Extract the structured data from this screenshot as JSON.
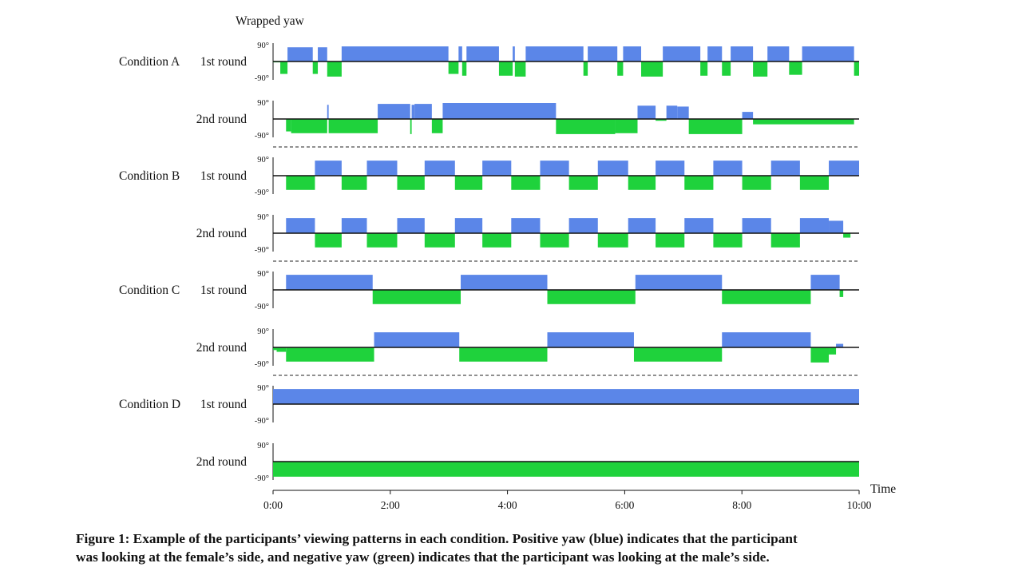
{
  "chart_data": {
    "type": "area",
    "title": "Wrapped yaw",
    "xlabel": "Time",
    "xticks": [
      "0:00",
      "2:00",
      "4:00",
      "6:00",
      "8:00",
      "10:00"
    ],
    "xlim": [
      0,
      600
    ],
    "ylim": [
      -90,
      90
    ],
    "ytick_labels": [
      "90°",
      "-90°"
    ],
    "colors": {
      "positive": "#5b86e8",
      "negative": "#1fd23c",
      "axis": "#111111"
    },
    "conditions": [
      {
        "name": "Condition A",
        "rounds": [
          {
            "label": "1st round",
            "segments": [
              [
                0,
                10,
                -5
              ],
              [
                10,
                20,
                -70
              ],
              [
                20,
                55,
                80
              ],
              [
                55,
                62,
                -70
              ],
              [
                62,
                75,
                80
              ],
              [
                75,
                95,
                -85
              ],
              [
                95,
                243,
                85
              ],
              [
                243,
                257,
                -70
              ],
              [
                257,
                262,
                85
              ],
              [
                262,
                268,
                -80
              ],
              [
                268,
                313,
                85
              ],
              [
                313,
                332,
                -80
              ],
              [
                332,
                335,
                85
              ],
              [
                335,
                350,
                -85
              ],
              [
                350,
                430,
                85
              ],
              [
                430,
                436,
                -80
              ],
              [
                436,
                477,
                85
              ],
              [
                477,
                485,
                -80
              ],
              [
                485,
                510,
                85
              ],
              [
                510,
                540,
                -85
              ],
              [
                540,
                592,
                85
              ],
              [
                592,
                602,
                -80
              ],
              [
                602,
                622,
                85
              ],
              [
                622,
                634,
                -80
              ],
              [
                634,
                665,
                85
              ],
              [
                665,
                685,
                -85
              ],
              [
                685,
                715,
                85
              ],
              [
                715,
                733,
                -75
              ],
              [
                733,
                805,
                85
              ],
              [
                805,
                812,
                -80
              ]
            ]
          },
          {
            "label": "2nd round",
            "segments": [
              [
                0,
                18,
                0
              ],
              [
                18,
                25,
                -70
              ],
              [
                25,
                75,
                -80
              ],
              [
                75,
                77,
                80
              ],
              [
                77,
                145,
                -80
              ],
              [
                145,
                190,
                85
              ],
              [
                190,
                192,
                -85
              ],
              [
                192,
                196,
                80
              ],
              [
                196,
                220,
                85
              ],
              [
                220,
                235,
                -80
              ],
              [
                235,
                392,
                90
              ],
              [
                392,
                474,
                -85
              ],
              [
                474,
                505,
                -80
              ],
              [
                505,
                530,
                75
              ],
              [
                530,
                545,
                -10
              ],
              [
                545,
                560,
                75
              ],
              [
                560,
                576,
                70
              ],
              [
                576,
                650,
                -85
              ],
              [
                650,
                665,
                40
              ],
              [
                665,
                805,
                -30
              ]
            ]
          }
        ]
      },
      {
        "name": "Condition B",
        "rounds": [
          {
            "label": "1st round",
            "segments": [
              [
                0,
                18,
                0
              ],
              [
                18,
                58,
                -80
              ],
              [
                58,
                95,
                85
              ],
              [
                95,
                130,
                -80
              ],
              [
                130,
                172,
                85
              ],
              [
                172,
                210,
                -80
              ],
              [
                210,
                252,
                85
              ],
              [
                252,
                290,
                -80
              ],
              [
                290,
                330,
                85
              ],
              [
                330,
                370,
                -80
              ],
              [
                370,
                410,
                85
              ],
              [
                410,
                450,
                -80
              ],
              [
                450,
                492,
                85
              ],
              [
                492,
                530,
                -80
              ],
              [
                530,
                570,
                85
              ],
              [
                570,
                610,
                -80
              ],
              [
                610,
                650,
                85
              ],
              [
                650,
                690,
                -80
              ],
              [
                690,
                730,
                85
              ],
              [
                730,
                770,
                -80
              ],
              [
                770,
                812,
                85
              ]
            ]
          },
          {
            "label": "2nd round",
            "segments": [
              [
                0,
                18,
                0
              ],
              [
                18,
                58,
                85
              ],
              [
                58,
                95,
                -80
              ],
              [
                95,
                130,
                85
              ],
              [
                130,
                172,
                -80
              ],
              [
                172,
                210,
                85
              ],
              [
                210,
                252,
                -80
              ],
              [
                252,
                290,
                85
              ],
              [
                290,
                330,
                -80
              ],
              [
                330,
                370,
                85
              ],
              [
                370,
                410,
                -80
              ],
              [
                410,
                450,
                85
              ],
              [
                450,
                492,
                -80
              ],
              [
                492,
                530,
                85
              ],
              [
                530,
                570,
                -80
              ],
              [
                570,
                610,
                85
              ],
              [
                610,
                650,
                -80
              ],
              [
                650,
                690,
                85
              ],
              [
                690,
                730,
                -80
              ],
              [
                730,
                770,
                85
              ],
              [
                770,
                790,
                70
              ],
              [
                790,
                800,
                -25
              ]
            ]
          }
        ]
      },
      {
        "name": "Condition C",
        "rounds": [
          {
            "label": "1st round",
            "segments": [
              [
                0,
                18,
                0
              ],
              [
                18,
                138,
                85
              ],
              [
                138,
                260,
                -80
              ],
              [
                260,
                380,
                85
              ],
              [
                380,
                502,
                -80
              ],
              [
                502,
                622,
                85
              ],
              [
                622,
                745,
                -80
              ],
              [
                745,
                785,
                85
              ],
              [
                785,
                790,
                -40
              ]
            ]
          },
          {
            "label": "2nd round",
            "segments": [
              [
                0,
                5,
                -15
              ],
              [
                5,
                18,
                -25
              ],
              [
                18,
                140,
                -80
              ],
              [
                140,
                258,
                85
              ],
              [
                258,
                380,
                -80
              ],
              [
                380,
                500,
                85
              ],
              [
                500,
                622,
                -80
              ],
              [
                622,
                745,
                85
              ],
              [
                745,
                770,
                -85
              ],
              [
                770,
                780,
                -40
              ],
              [
                780,
                790,
                20
              ]
            ]
          }
        ]
      },
      {
        "name": "Condition D",
        "rounds": [
          {
            "label": "1st round",
            "segments": [
              [
                0,
                812,
                85
              ]
            ]
          },
          {
            "label": "2nd round",
            "segments": [
              [
                0,
                812,
                -85
              ]
            ]
          }
        ]
      }
    ]
  },
  "caption": {
    "line1": "Figure 1: Example of the participants’ viewing patterns in each condition. Positive yaw (blue) indicates that the participant",
    "line2": "was looking at the female’s side, and negative yaw (green) indicates that the participant was looking at the male’s side."
  }
}
